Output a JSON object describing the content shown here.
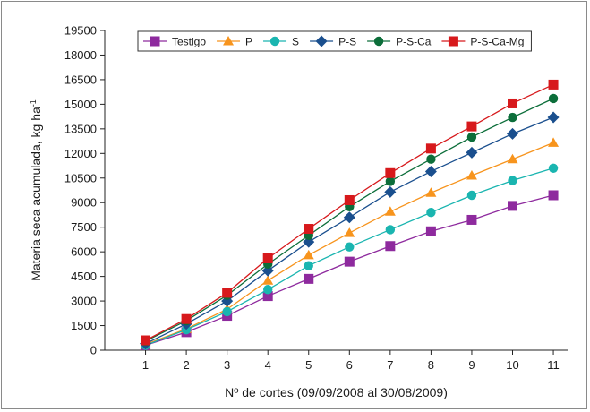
{
  "chart_data": {
    "type": "line",
    "title": "",
    "xlabel": "Nº de cortes (09/09/2008 al 30/08/2009)",
    "ylabel_main": "Materia seca acumulada, kg ha",
    "ylabel_sup": "-1",
    "x": [
      1,
      2,
      3,
      4,
      5,
      6,
      7,
      8,
      9,
      10,
      11
    ],
    "xlim": [
      0,
      11.35
    ],
    "ylim": [
      0,
      19500
    ],
    "yticks": [
      0,
      1500,
      3000,
      4500,
      6000,
      7500,
      9000,
      10500,
      12000,
      13500,
      15000,
      16500,
      18000,
      19500
    ],
    "grid": false,
    "legend_position": "top",
    "series": [
      {
        "name": "Testigo",
        "color": "#8e2a9e",
        "marker": "square",
        "values": [
          300,
          1100,
          2100,
          3300,
          4350,
          5400,
          6350,
          7250,
          7950,
          8800,
          9450
        ]
      },
      {
        "name": "P",
        "color": "#f7941d",
        "marker": "triangle",
        "values": [
          350,
          1300,
          2500,
          4250,
          5800,
          7150,
          8450,
          9600,
          10650,
          11650,
          12650
        ]
      },
      {
        "name": "S",
        "color": "#1ab5b0",
        "marker": "circle",
        "values": [
          300,
          1250,
          2350,
          3700,
          5150,
          6300,
          7350,
          8400,
          9450,
          10350,
          11100
        ]
      },
      {
        "name": "P-S",
        "color": "#1a4f8e",
        "marker": "diamond",
        "values": [
          400,
          1600,
          3000,
          4850,
          6600,
          8100,
          9650,
          10900,
          12050,
          13200,
          14200
        ]
      },
      {
        "name": "P-S-Ca",
        "color": "#0c6e3a",
        "marker": "circle",
        "values": [
          550,
          1800,
          3350,
          5250,
          7000,
          8750,
          10300,
          11650,
          13000,
          14200,
          15350
        ]
      },
      {
        "name": "P-S-Ca-Mg",
        "color": "#d7191c",
        "marker": "square",
        "values": [
          600,
          1900,
          3500,
          5600,
          7400,
          9150,
          10800,
          12300,
          13650,
          15050,
          16200
        ]
      }
    ]
  }
}
